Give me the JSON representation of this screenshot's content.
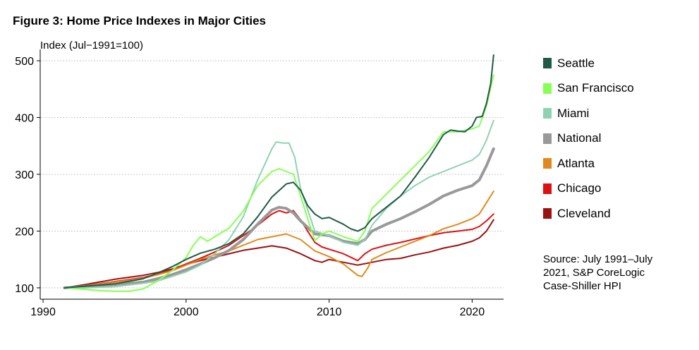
{
  "title": "Figure 3: Home Price Indexes in Major Cities",
  "source_lines": [
    "Source: July 1991–July",
    "2021, S&P CoreLogic",
    "Case-Shiller HPI"
  ],
  "chart_data": {
    "type": "line",
    "title": "Figure 3: Home Price Indexes in Major Cities",
    "xlabel": "",
    "ylabel": "Index (Jul−1991=100)",
    "xlim": [
      1989.8,
      2022.2
    ],
    "ylim": [
      80,
      520
    ],
    "xticks": [
      1990,
      2000,
      2010,
      2020
    ],
    "yticks": [
      100,
      200,
      300,
      400,
      500
    ],
    "grid": "horizontal dotted",
    "legend": "right",
    "series": [
      {
        "name": "Seattle",
        "color": "#1f5a45",
        "width": 2,
        "points": [
          [
            1991.5,
            100
          ],
          [
            1993,
            103
          ],
          [
            1995,
            107
          ],
          [
            1997,
            116
          ],
          [
            1998,
            126
          ],
          [
            1999,
            137
          ],
          [
            2000,
            150
          ],
          [
            2001,
            161
          ],
          [
            2002,
            168
          ],
          [
            2003,
            178
          ],
          [
            2004,
            195
          ],
          [
            2005,
            225
          ],
          [
            2006,
            260
          ],
          [
            2007,
            283
          ],
          [
            2007.5,
            286
          ],
          [
            2008,
            272
          ],
          [
            2008.5,
            245
          ],
          [
            2009,
            230
          ],
          [
            2009.5,
            222
          ],
          [
            2010,
            224
          ],
          [
            2011,
            212
          ],
          [
            2011.5,
            204
          ],
          [
            2012,
            200
          ],
          [
            2012.5,
            206
          ],
          [
            2013,
            222
          ],
          [
            2014,
            242
          ],
          [
            2015,
            262
          ],
          [
            2016,
            295
          ],
          [
            2017,
            330
          ],
          [
            2018,
            370
          ],
          [
            2018.5,
            378
          ],
          [
            2019,
            376
          ],
          [
            2019.5,
            375
          ],
          [
            2020,
            385
          ],
          [
            2020.3,
            400
          ],
          [
            2020.7,
            402
          ],
          [
            2021,
            425
          ],
          [
            2021.3,
            460
          ],
          [
            2021.5,
            510
          ]
        ]
      },
      {
        "name": "San Francisco",
        "color": "#88ff55",
        "width": 2,
        "points": [
          [
            1991.5,
            100
          ],
          [
            1993,
            97
          ],
          [
            1994,
            95
          ],
          [
            1995,
            94
          ],
          [
            1996,
            94
          ],
          [
            1997,
            98
          ],
          [
            1998,
            112
          ],
          [
            1999,
            130
          ],
          [
            2000,
            153
          ],
          [
            2000.5,
            175
          ],
          [
            2001,
            190
          ],
          [
            2001.5,
            182
          ],
          [
            2002,
            190
          ],
          [
            2003,
            205
          ],
          [
            2004,
            235
          ],
          [
            2005,
            280
          ],
          [
            2006,
            305
          ],
          [
            2006.5,
            310
          ],
          [
            2007,
            305
          ],
          [
            2007.5,
            300
          ],
          [
            2008,
            262
          ],
          [
            2008.5,
            222
          ],
          [
            2009,
            183
          ],
          [
            2009.5,
            195
          ],
          [
            2010,
            200
          ],
          [
            2011,
            190
          ],
          [
            2012,
            182
          ],
          [
            2012.5,
            200
          ],
          [
            2013,
            240
          ],
          [
            2014,
            265
          ],
          [
            2015,
            290
          ],
          [
            2016,
            315
          ],
          [
            2017,
            340
          ],
          [
            2018,
            375
          ],
          [
            2019,
            375
          ],
          [
            2020,
            380
          ],
          [
            2020.5,
            385
          ],
          [
            2021,
            420
          ],
          [
            2021.5,
            475
          ]
        ]
      },
      {
        "name": "Miami",
        "color": "#8fd2b3",
        "width": 2,
        "points": [
          [
            1991.5,
            100
          ],
          [
            1993,
            100
          ],
          [
            1995,
            102
          ],
          [
            1997,
            108
          ],
          [
            1998,
            112
          ],
          [
            1999,
            120
          ],
          [
            2000,
            128
          ],
          [
            2001,
            140
          ],
          [
            2002,
            160
          ],
          [
            2003,
            185
          ],
          [
            2004,
            225
          ],
          [
            2005,
            290
          ],
          [
            2006,
            345
          ],
          [
            2006.3,
            357
          ],
          [
            2006.8,
            355
          ],
          [
            2007.2,
            355
          ],
          [
            2007.6,
            330
          ],
          [
            2008,
            275
          ],
          [
            2009,
            200
          ],
          [
            2010,
            192
          ],
          [
            2011,
            180
          ],
          [
            2012,
            175
          ],
          [
            2012.5,
            185
          ],
          [
            2013,
            210
          ],
          [
            2014,
            240
          ],
          [
            2015,
            262
          ],
          [
            2016,
            280
          ],
          [
            2017,
            295
          ],
          [
            2018,
            305
          ],
          [
            2019,
            315
          ],
          [
            2020,
            325
          ],
          [
            2020.5,
            335
          ],
          [
            2021,
            360
          ],
          [
            2021.5,
            395
          ]
        ]
      },
      {
        "name": "National",
        "color": "#999999",
        "width": 4,
        "points": [
          [
            1991.5,
            100
          ],
          [
            1993,
            102
          ],
          [
            1995,
            106
          ],
          [
            1997,
            110
          ],
          [
            1998,
            116
          ],
          [
            1999,
            123
          ],
          [
            2000,
            132
          ],
          [
            2001,
            142
          ],
          [
            2002,
            153
          ],
          [
            2003,
            166
          ],
          [
            2004,
            185
          ],
          [
            2005,
            212
          ],
          [
            2006,
            237
          ],
          [
            2006.5,
            242
          ],
          [
            2007,
            240
          ],
          [
            2007.5,
            232
          ],
          [
            2008,
            218
          ],
          [
            2009,
            195
          ],
          [
            2010,
            192
          ],
          [
            2011,
            182
          ],
          [
            2012,
            178
          ],
          [
            2012.5,
            185
          ],
          [
            2013,
            200
          ],
          [
            2014,
            212
          ],
          [
            2015,
            222
          ],
          [
            2016,
            234
          ],
          [
            2017,
            247
          ],
          [
            2018,
            262
          ],
          [
            2019,
            272
          ],
          [
            2020,
            280
          ],
          [
            2020.5,
            290
          ],
          [
            2021,
            315
          ],
          [
            2021.5,
            345
          ]
        ]
      },
      {
        "name": "Atlanta",
        "color": "#e08a1e",
        "width": 2,
        "points": [
          [
            1991.5,
            100
          ],
          [
            1993,
            104
          ],
          [
            1995,
            110
          ],
          [
            1997,
            117
          ],
          [
            1998,
            123
          ],
          [
            1999,
            130
          ],
          [
            2000,
            140
          ],
          [
            2001,
            150
          ],
          [
            2002,
            158
          ],
          [
            2003,
            165
          ],
          [
            2004,
            175
          ],
          [
            2005,
            185
          ],
          [
            2006,
            190
          ],
          [
            2007,
            195
          ],
          [
            2008,
            185
          ],
          [
            2009,
            165
          ],
          [
            2010,
            155
          ],
          [
            2011,
            142
          ],
          [
            2011.5,
            132
          ],
          [
            2012,
            122
          ],
          [
            2012.3,
            120
          ],
          [
            2012.7,
            135
          ],
          [
            2013,
            150
          ],
          [
            2014,
            162
          ],
          [
            2015,
            172
          ],
          [
            2016,
            182
          ],
          [
            2017,
            192
          ],
          [
            2018,
            204
          ],
          [
            2019,
            212
          ],
          [
            2020,
            222
          ],
          [
            2020.5,
            230
          ],
          [
            2021,
            250
          ],
          [
            2021.5,
            270
          ]
        ]
      },
      {
        "name": "Chicago",
        "color": "#dd1111",
        "width": 2,
        "points": [
          [
            1991.5,
            100
          ],
          [
            1993,
            104
          ],
          [
            1995,
            111
          ],
          [
            1997,
            118
          ],
          [
            1998,
            124
          ],
          [
            1999,
            132
          ],
          [
            2000,
            142
          ],
          [
            2001,
            152
          ],
          [
            2002,
            163
          ],
          [
            2003,
            175
          ],
          [
            2004,
            192
          ],
          [
            2005,
            210
          ],
          [
            2006,
            230
          ],
          [
            2006.5,
            236
          ],
          [
            2007,
            232
          ],
          [
            2007.5,
            236
          ],
          [
            2008,
            220
          ],
          [
            2008.5,
            200
          ],
          [
            2009,
            180
          ],
          [
            2009.5,
            172
          ],
          [
            2010,
            168
          ],
          [
            2011,
            160
          ],
          [
            2012,
            148
          ],
          [
            2012.5,
            160
          ],
          [
            2013,
            168
          ],
          [
            2014,
            175
          ],
          [
            2015,
            180
          ],
          [
            2016,
            186
          ],
          [
            2017,
            192
          ],
          [
            2018,
            197
          ],
          [
            2019,
            200
          ],
          [
            2020,
            203
          ],
          [
            2020.5,
            208
          ],
          [
            2021,
            218
          ],
          [
            2021.5,
            230
          ]
        ]
      },
      {
        "name": "Cleveland",
        "color": "#991111",
        "width": 2,
        "points": [
          [
            1991.5,
            100
          ],
          [
            1993,
            106
          ],
          [
            1995,
            115
          ],
          [
            1997,
            122
          ],
          [
            1998,
            127
          ],
          [
            1999,
            133
          ],
          [
            2000,
            141
          ],
          [
            2001,
            148
          ],
          [
            2002,
            154
          ],
          [
            2003,
            160
          ],
          [
            2004,
            166
          ],
          [
            2005,
            170
          ],
          [
            2006,
            174
          ],
          [
            2007,
            170
          ],
          [
            2008,
            160
          ],
          [
            2009,
            148
          ],
          [
            2009.5,
            145
          ],
          [
            2010,
            150
          ],
          [
            2011,
            145
          ],
          [
            2012,
            140
          ],
          [
            2013,
            145
          ],
          [
            2014,
            150
          ],
          [
            2015,
            152
          ],
          [
            2016,
            158
          ],
          [
            2017,
            163
          ],
          [
            2018,
            170
          ],
          [
            2019,
            175
          ],
          [
            2020,
            182
          ],
          [
            2020.5,
            188
          ],
          [
            2021,
            200
          ],
          [
            2021.5,
            220
          ]
        ]
      }
    ]
  }
}
